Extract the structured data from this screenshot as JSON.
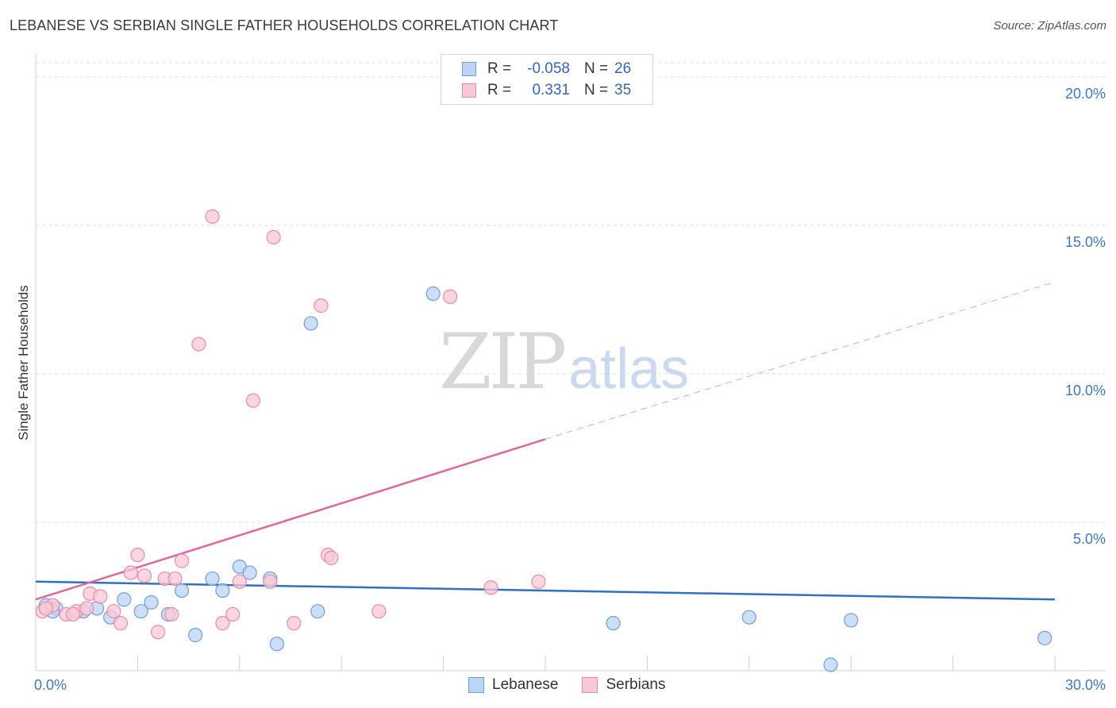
{
  "title": "LEBANESE VS SERBIAN SINGLE FATHER HOUSEHOLDS CORRELATION CHART",
  "source": "Source: ZipAtlas.com",
  "watermark": {
    "zip": "ZIP",
    "atlas": "atlas"
  },
  "legend": {
    "rows": [
      {
        "r_label": "R =",
        "r_value": "-0.058",
        "n_label": "N =",
        "n_value": "26"
      },
      {
        "r_label": "R =",
        "r_value": "0.331",
        "n_label": "N =",
        "n_value": "35"
      }
    ]
  },
  "colors": {
    "lebanese_fill": "#bcd4f5",
    "lebanese_stroke": "#6f9fd8",
    "lebanese_line": "#2f6fc4",
    "serbian_fill": "#f9c8d6",
    "serbian_stroke": "#e88aa8",
    "serbian_line": "#e0679a",
    "axis_text": "#3f76c4",
    "grid": "#dcdcdc"
  },
  "chart_data": {
    "type": "scatter",
    "title": "LEBANESE VS SERBIAN SINGLE FATHER HOUSEHOLDS CORRELATION CHART",
    "xlabel": "",
    "ylabel": "Single Father Households",
    "xlim": [
      0,
      30
    ],
    "ylim": [
      0,
      20
    ],
    "x_tick_labels": [
      "0.0%",
      "30.0%"
    ],
    "y_tick_labels": [
      "5.0%",
      "10.0%",
      "15.0%",
      "20.0%"
    ],
    "y_ticks": [
      5,
      10,
      15,
      20
    ],
    "series": [
      {
        "name": "Lebanese",
        "points": [
          [
            0.3,
            2.2
          ],
          [
            0.6,
            2.1
          ],
          [
            1.4,
            2.0
          ],
          [
            1.8,
            2.1
          ],
          [
            2.2,
            1.8
          ],
          [
            2.6,
            2.4
          ],
          [
            3.1,
            2.0
          ],
          [
            3.4,
            2.3
          ],
          [
            3.9,
            1.9
          ],
          [
            4.3,
            2.7
          ],
          [
            4.7,
            1.2
          ],
          [
            5.2,
            3.1
          ],
          [
            5.5,
            2.7
          ],
          [
            6.0,
            3.5
          ],
          [
            6.3,
            3.3
          ],
          [
            6.9,
            3.1
          ],
          [
            7.1,
            0.9
          ],
          [
            8.1,
            11.7
          ],
          [
            8.3,
            2.0
          ],
          [
            11.7,
            12.7
          ],
          [
            17.0,
            1.6
          ],
          [
            21.0,
            1.8
          ],
          [
            23.4,
            0.2
          ],
          [
            24.0,
            1.7
          ],
          [
            29.7,
            1.1
          ],
          [
            0.5,
            2.0
          ]
        ],
        "trend": {
          "x": [
            0,
            30
          ],
          "y": [
            3.0,
            2.4
          ]
        }
      },
      {
        "name": "Serbians",
        "points": [
          [
            0.2,
            2.0
          ],
          [
            0.5,
            2.2
          ],
          [
            0.9,
            1.9
          ],
          [
            1.2,
            2.0
          ],
          [
            1.5,
            2.1
          ],
          [
            1.6,
            2.6
          ],
          [
            1.9,
            2.5
          ],
          [
            2.3,
            2.0
          ],
          [
            2.5,
            1.6
          ],
          [
            2.8,
            3.3
          ],
          [
            3.0,
            3.9
          ],
          [
            3.2,
            3.2
          ],
          [
            3.6,
            1.3
          ],
          [
            3.8,
            3.1
          ],
          [
            4.0,
            1.9
          ],
          [
            4.1,
            3.1
          ],
          [
            4.3,
            3.7
          ],
          [
            4.8,
            11.0
          ],
          [
            5.2,
            15.3
          ],
          [
            5.5,
            1.6
          ],
          [
            5.8,
            1.9
          ],
          [
            6.0,
            3.0
          ],
          [
            6.4,
            9.1
          ],
          [
            6.9,
            3.0
          ],
          [
            7.0,
            14.6
          ],
          [
            7.6,
            1.6
          ],
          [
            8.4,
            12.3
          ],
          [
            8.6,
            3.9
          ],
          [
            8.7,
            3.8
          ],
          [
            10.1,
            2.0
          ],
          [
            12.2,
            12.6
          ],
          [
            13.4,
            2.8
          ],
          [
            14.8,
            3.0
          ],
          [
            0.3,
            2.1
          ],
          [
            1.1,
            1.9
          ]
        ],
        "trend": {
          "x": [
            0,
            15
          ],
          "y": [
            2.4,
            7.8
          ]
        },
        "trend_extension": {
          "x": [
            15,
            30
          ],
          "y": [
            7.8,
            13.1
          ]
        }
      }
    ]
  }
}
